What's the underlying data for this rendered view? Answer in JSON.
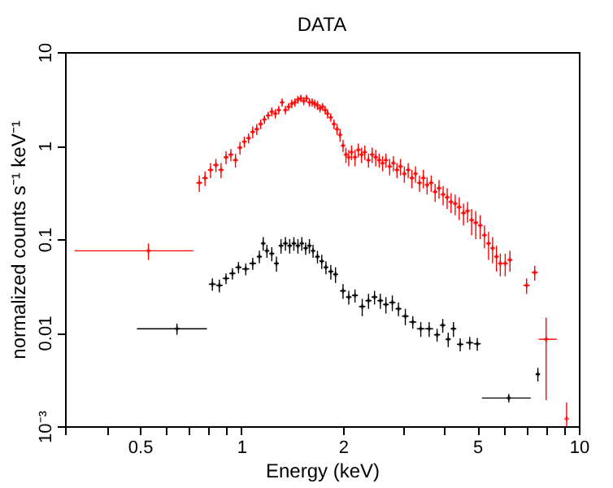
{
  "chart_data": {
    "type": "scatter",
    "title": "DATA",
    "xlabel": "Energy (keV)",
    "ylabel": "normalized counts s⁻¹ keV⁻¹",
    "log": "xy",
    "grid": false,
    "marker": "cross",
    "xlim": [
      0.3,
      10
    ],
    "ylim": [
      0.001,
      10
    ],
    "xticks": [
      {
        "value": 0.3,
        "label": null
      },
      {
        "value": 0.4,
        "label": null
      },
      0.5,
      {
        "value": 0.6,
        "label": null
      },
      {
        "value": 0.7,
        "label": null
      },
      {
        "value": 0.8,
        "label": null
      },
      {
        "value": 0.9,
        "label": null
      },
      1,
      2,
      {
        "value": 3,
        "label": null
      },
      {
        "value": 4,
        "label": null
      },
      5,
      {
        "value": 6,
        "label": null
      },
      {
        "value": 7,
        "label": null
      },
      {
        "value": 8,
        "label": null
      },
      {
        "value": 9,
        "label": null
      },
      10
    ],
    "yticks": [
      {
        "value": 0.001,
        "label": "10⁻³"
      },
      0.01,
      0.1,
      1,
      10
    ],
    "series": [
      {
        "color": "#ff0000",
        "x": [
          0.53,
          0.75,
          0.78,
          0.81,
          0.84,
          0.87,
          0.9,
          0.93,
          0.96,
          0.99,
          1.02,
          1.05,
          1.08,
          1.11,
          1.14,
          1.17,
          1.2,
          1.23,
          1.26,
          1.29,
          1.32,
          1.35,
          1.38,
          1.41,
          1.44,
          1.47,
          1.5,
          1.53,
          1.56,
          1.59,
          1.62,
          1.65,
          1.68,
          1.71,
          1.74,
          1.77,
          1.8,
          1.84,
          1.88,
          1.92,
          1.96,
          2.0,
          2.04,
          2.08,
          2.12,
          2.17,
          2.22,
          2.27,
          2.32,
          2.38,
          2.44,
          2.5,
          2.56,
          2.62,
          2.68,
          2.75,
          2.82,
          2.89,
          2.96,
          3.04,
          3.12,
          3.2,
          3.28,
          3.37,
          3.46,
          3.55,
          3.65,
          3.75,
          3.85,
          3.96,
          4.07,
          4.18,
          4.3,
          4.42,
          4.55,
          4.68,
          4.81,
          4.95,
          5.1,
          5.25,
          5.4,
          5.55,
          5.7,
          5.85,
          6.05,
          6.25,
          7.0,
          7.4,
          8.0,
          9.2
        ],
        "values": [
          0.075,
          0.4,
          0.45,
          0.55,
          0.62,
          0.55,
          0.75,
          0.8,
          0.7,
          0.95,
          1.1,
          1.2,
          1.4,
          1.5,
          1.7,
          1.9,
          2.1,
          2.3,
          2.2,
          2.4,
          2.9,
          2.4,
          2.6,
          2.8,
          2.9,
          3.1,
          3.2,
          3.0,
          3.2,
          2.9,
          2.9,
          2.8,
          2.7,
          2.5,
          2.6,
          2.4,
          2.2,
          2.0,
          1.7,
          1.5,
          1.3,
          1.0,
          0.8,
          0.75,
          0.85,
          0.75,
          0.9,
          0.8,
          0.85,
          0.7,
          0.8,
          0.75,
          0.7,
          0.65,
          0.7,
          0.6,
          0.65,
          0.55,
          0.6,
          0.5,
          0.55,
          0.45,
          0.5,
          0.4,
          0.45,
          0.38,
          0.4,
          0.32,
          0.35,
          0.3,
          0.28,
          0.25,
          0.24,
          0.22,
          0.19,
          0.2,
          0.16,
          0.15,
          0.14,
          0.11,
          0.09,
          0.08,
          0.065,
          0.055,
          0.055,
          0.06,
          0.032,
          0.044,
          0.0085,
          0.0012
        ],
        "errors": [
          0.015,
          0.08,
          0.08,
          0.1,
          0.1,
          0.1,
          0.12,
          0.12,
          0.12,
          0.15,
          0.15,
          0.15,
          0.2,
          0.2,
          0.2,
          0.2,
          0.2,
          0.25,
          0.25,
          0.25,
          0.3,
          0.25,
          0.25,
          0.3,
          0.3,
          0.3,
          0.3,
          0.3,
          0.3,
          0.3,
          0.3,
          0.3,
          0.3,
          0.25,
          0.25,
          0.25,
          0.25,
          0.2,
          0.2,
          0.2,
          0.2,
          0.15,
          0.15,
          0.15,
          0.15,
          0.15,
          0.15,
          0.15,
          0.15,
          0.12,
          0.15,
          0.15,
          0.12,
          0.12,
          0.12,
          0.12,
          0.12,
          0.1,
          0.12,
          0.1,
          0.1,
          0.1,
          0.1,
          0.08,
          0.1,
          0.08,
          0.08,
          0.07,
          0.08,
          0.07,
          0.07,
          0.06,
          0.06,
          0.06,
          0.05,
          0.05,
          0.05,
          0.05,
          0.04,
          0.03,
          0.03,
          0.025,
          0.02,
          0.015,
          0.015,
          0.015,
          0.006,
          0.008,
          [
            0.0019,
            0.0145
          ],
          [
            0.001,
            0.0018
          ]
        ],
        "xerrors": [
          [
            0.32,
            0.72
          ],
          0.015,
          0.015,
          0.015,
          0.015,
          0.015,
          0.015,
          0.015,
          0.015,
          0.015,
          0.015,
          0.015,
          0.015,
          0.015,
          0.015,
          0.015,
          0.015,
          0.015,
          0.015,
          0.015,
          0.015,
          0.015,
          0.015,
          0.015,
          0.015,
          0.015,
          0.015,
          0.015,
          0.015,
          0.015,
          0.015,
          0.015,
          0.015,
          0.015,
          0.015,
          0.015,
          0.015,
          0.02,
          0.02,
          0.02,
          0.02,
          0.02,
          0.02,
          0.02,
          0.02,
          0.025,
          0.025,
          0.025,
          0.025,
          0.03,
          0.03,
          0.03,
          0.03,
          0.03,
          0.03,
          0.035,
          0.035,
          0.035,
          0.035,
          0.04,
          0.04,
          0.04,
          0.04,
          0.045,
          0.045,
          0.045,
          0.05,
          0.05,
          0.05,
          0.055,
          0.055,
          0.055,
          0.06,
          0.06,
          0.065,
          0.065,
          0.065,
          0.07,
          0.075,
          0.075,
          0.075,
          0.075,
          0.075,
          0.075,
          0.1,
          0.1,
          0.15,
          0.15,
          [
            7.6,
            8.6
          ],
          null
        ]
      },
      {
        "color": "#000000",
        "x": [
          0.644,
          0.82,
          0.86,
          0.9,
          0.94,
          0.98,
          1.03,
          1.08,
          1.13,
          1.16,
          1.19,
          1.23,
          1.27,
          1.31,
          1.35,
          1.39,
          1.43,
          1.47,
          1.51,
          1.55,
          1.59,
          1.63,
          1.68,
          1.73,
          1.78,
          1.84,
          1.9,
          2.0,
          2.08,
          2.17,
          2.28,
          2.38,
          2.48,
          2.58,
          2.68,
          2.8,
          2.92,
          3.06,
          3.22,
          3.4,
          3.6,
          3.8,
          3.95,
          4.1,
          4.25,
          4.45,
          4.75,
          5.0,
          6.2,
          7.56
        ],
        "values": [
          0.011,
          0.033,
          0.032,
          0.038,
          0.043,
          0.05,
          0.048,
          0.055,
          0.065,
          0.09,
          0.075,
          0.07,
          0.055,
          0.085,
          0.09,
          0.085,
          0.09,
          0.085,
          0.09,
          0.08,
          0.085,
          0.075,
          0.065,
          0.058,
          0.05,
          0.045,
          0.042,
          0.028,
          0.024,
          0.025,
          0.019,
          0.022,
          0.024,
          0.022,
          0.02,
          0.021,
          0.018,
          0.015,
          0.013,
          0.011,
          0.011,
          0.0095,
          0.012,
          0.0085,
          0.011,
          0.0075,
          0.0078,
          0.0076,
          0.002,
          0.0036
        ],
        "errors": [
          0.0015,
          0.005,
          0.005,
          0.005,
          0.006,
          0.007,
          0.007,
          0.008,
          0.01,
          0.015,
          0.012,
          0.012,
          0.01,
          0.015,
          0.015,
          0.015,
          0.015,
          0.015,
          0.015,
          0.012,
          0.015,
          0.012,
          0.01,
          0.01,
          0.008,
          0.008,
          0.008,
          0.005,
          0.004,
          0.004,
          0.004,
          0.004,
          0.004,
          0.004,
          0.004,
          0.004,
          0.003,
          0.003,
          0.002,
          0.002,
          0.002,
          0.0015,
          0.002,
          0.0015,
          0.002,
          0.0012,
          0.0012,
          0.0012,
          0.0002,
          0.0006
        ],
        "xerrors": [
          [
            0.49,
            0.79
          ],
          0.02,
          0.02,
          0.02,
          0.02,
          0.02,
          0.025,
          0.025,
          0.02,
          0.015,
          0.015,
          0.02,
          0.02,
          0.02,
          0.02,
          0.02,
          0.02,
          0.02,
          0.02,
          0.02,
          0.02,
          0.02,
          0.025,
          0.025,
          0.025,
          0.03,
          0.03,
          0.04,
          0.04,
          0.045,
          0.05,
          0.05,
          0.05,
          0.05,
          0.05,
          0.06,
          0.06,
          0.07,
          0.08,
          0.09,
          0.1,
          0.08,
          0.07,
          0.07,
          0.08,
          0.1,
          0.12,
          0.12,
          [
            5.16,
            7.2
          ],
          0.1
        ]
      }
    ]
  }
}
